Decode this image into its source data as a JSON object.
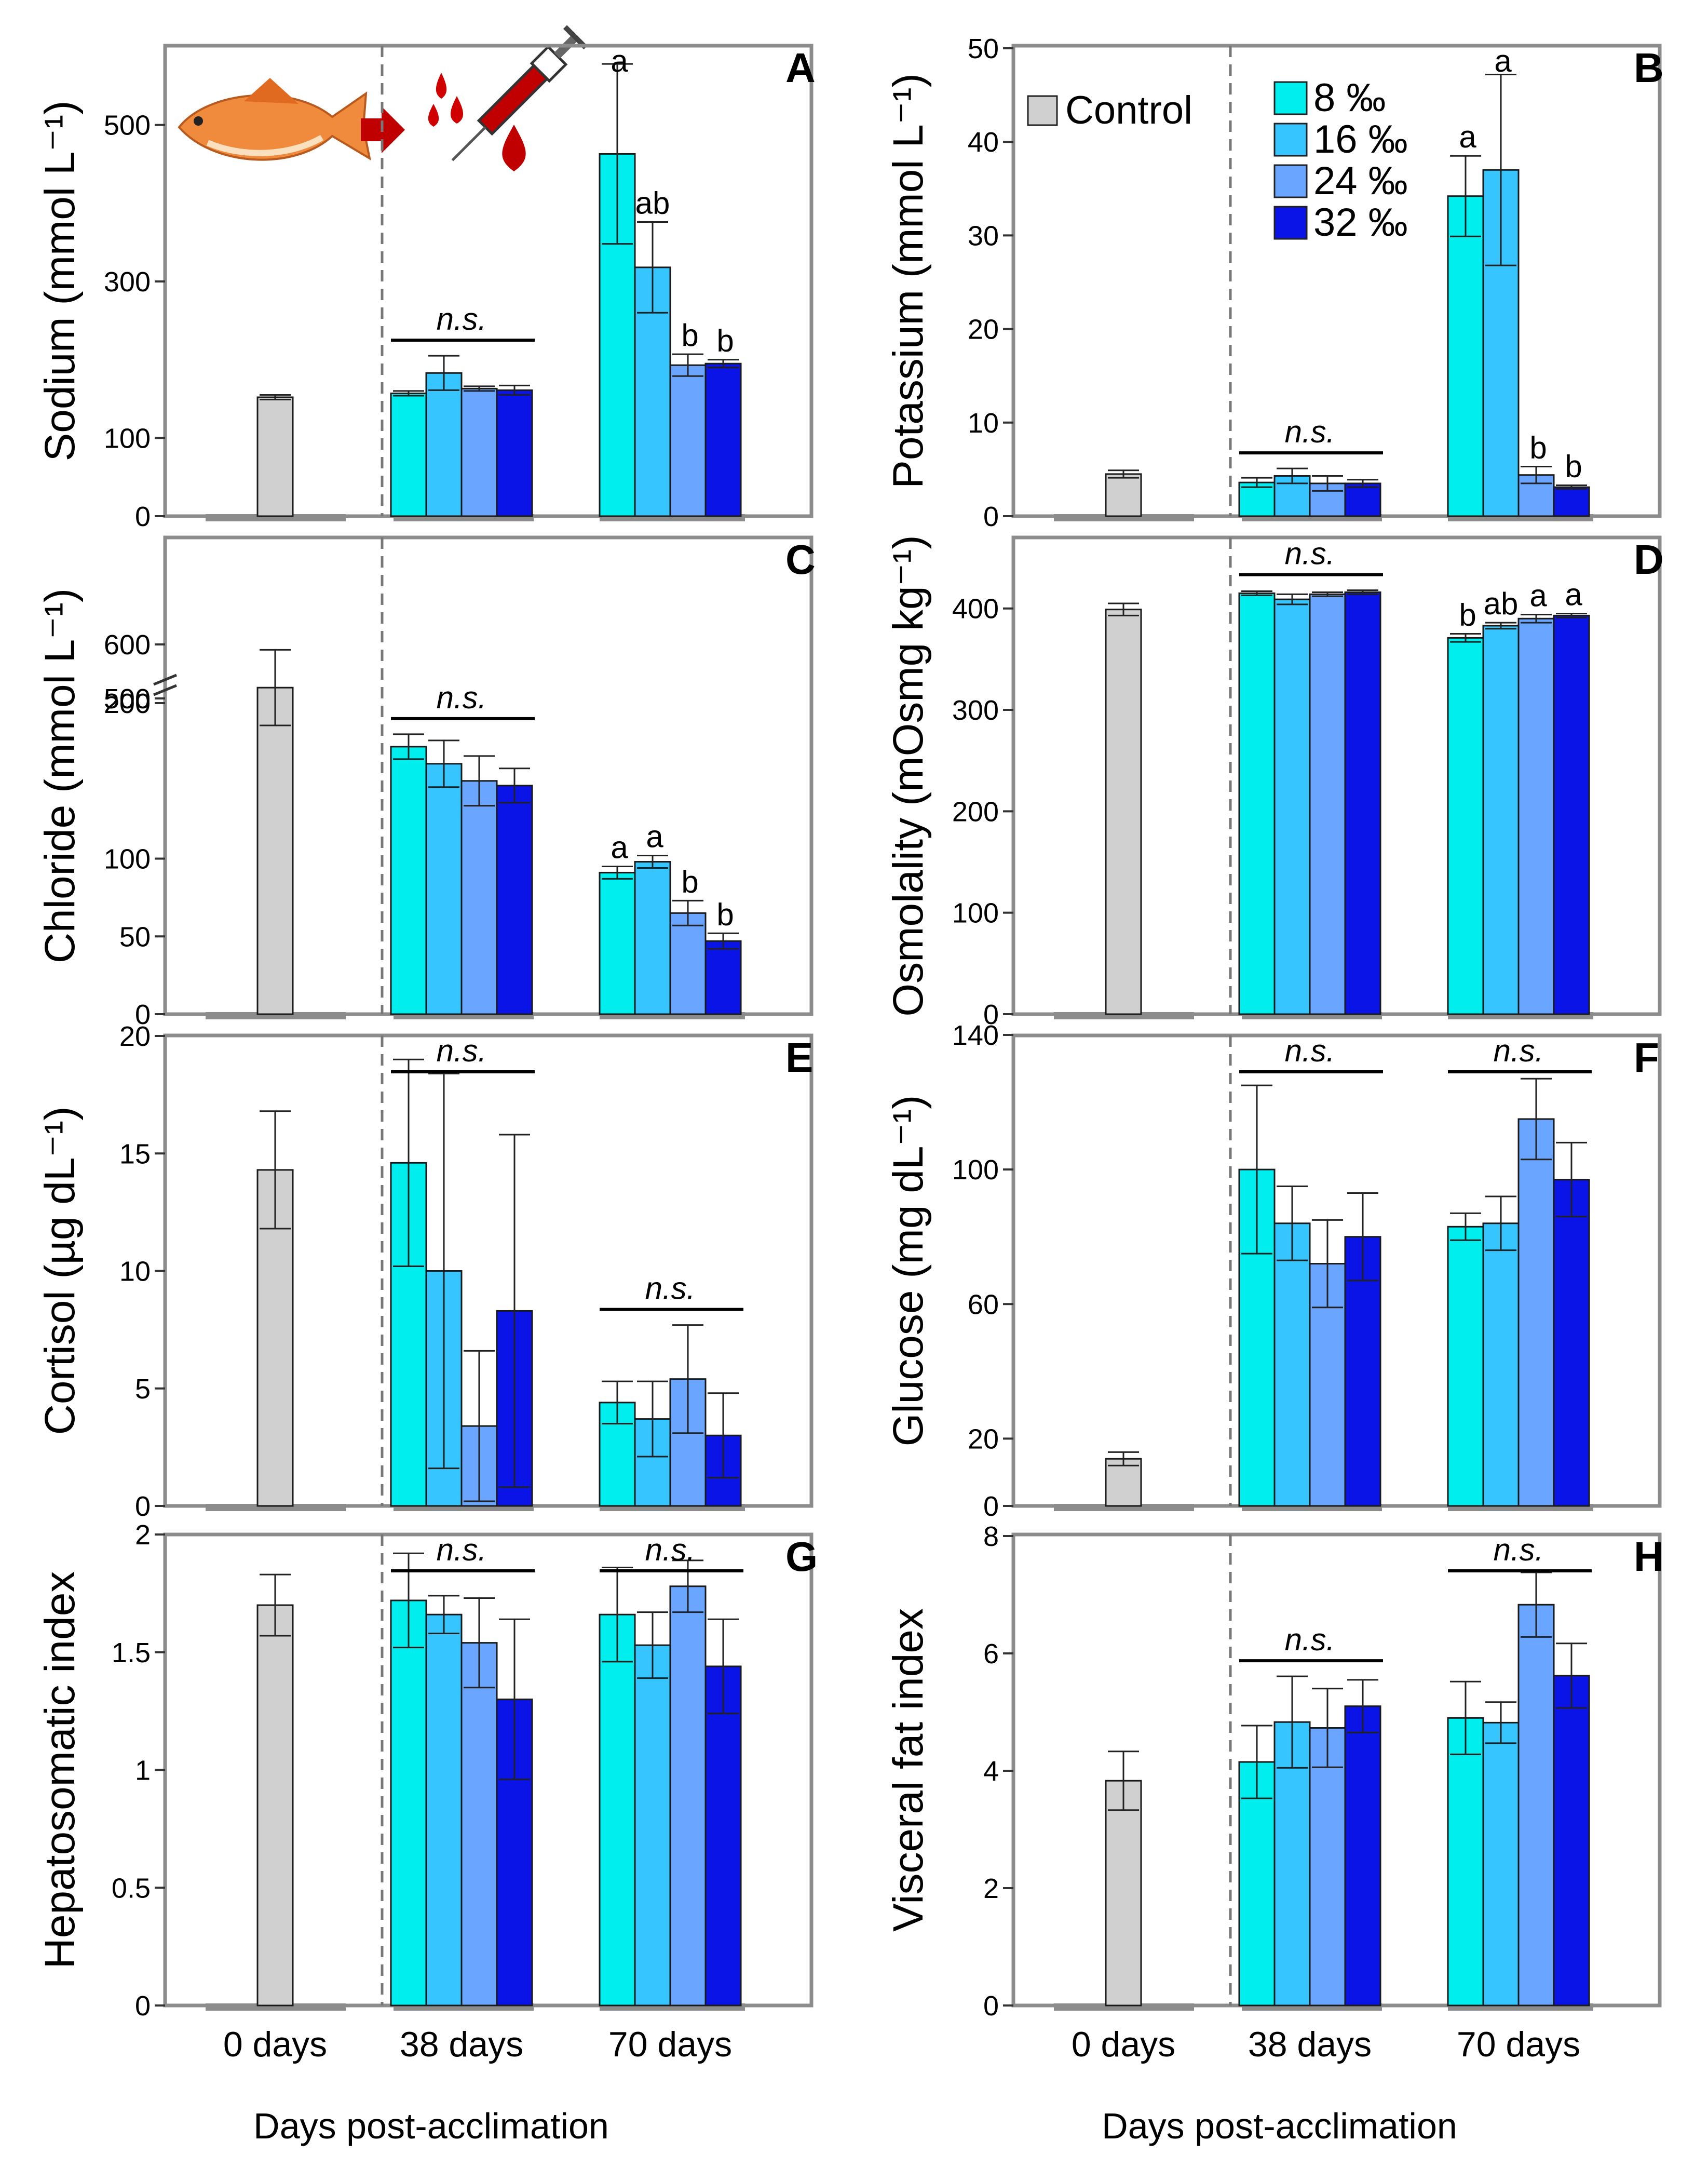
{
  "colors": {
    "control": "#d0d0d0",
    "s8": "#00eeee",
    "s16": "#36c5ff",
    "s24": "#6aa6ff",
    "s32": "#0a14e6",
    "frame": "#8c8c8c",
    "bar_edge": "#1a1a1a",
    "baseline": "#8c8c8c",
    "divider": "#777777",
    "fish": "#f08a3c",
    "blood": "#d00000"
  },
  "legend": {
    "control_label": "Control",
    "salinity_labels": [
      "8 ‰",
      "16 ‰",
      "24 ‰",
      "32 ‰"
    ]
  },
  "x_axis": {
    "groups": [
      "0 days",
      "38 days",
      "70 days"
    ],
    "xlabel": "Days post-acclimation"
  },
  "chart_data": [
    {
      "panel": "A",
      "type": "bar",
      "ylabel": "Sodium (mmol L⁻¹)",
      "ylim": [
        0,
        600
      ],
      "yticks": [
        0,
        100,
        300,
        500
      ],
      "categories": [
        "0 days",
        "38 days",
        "70 days"
      ],
      "control": {
        "value": 152,
        "err": 3
      },
      "series": [
        {
          "name": "8 ‰",
          "values": [
            null,
            157,
            463
          ],
          "errors": [
            null,
            3,
            115
          ]
        },
        {
          "name": "16 ‰",
          "values": [
            null,
            183,
            318
          ],
          "errors": [
            null,
            22,
            58
          ]
        },
        {
          "name": "24 ‰",
          "values": [
            null,
            163,
            193
          ],
          "errors": [
            null,
            3,
            14
          ]
        },
        {
          "name": "32 ‰",
          "values": [
            null,
            161,
            195
          ],
          "errors": [
            null,
            6,
            5
          ]
        }
      ],
      "annotations": [
        {
          "group": "38 days",
          "text": "n.s."
        },
        {
          "group": "70 days",
          "letters": [
            "a",
            "ab",
            "b",
            "b"
          ]
        }
      ]
    },
    {
      "panel": "B",
      "type": "bar",
      "ylabel": "Potassium (mmol L⁻¹)",
      "ylim": [
        0,
        50
      ],
      "yticks": [
        0,
        10,
        20,
        30,
        40,
        50
      ],
      "categories": [
        "0 days",
        "38 days",
        "70 days"
      ],
      "control": {
        "value": 4.5,
        "err": 0.4
      },
      "series": [
        {
          "name": "8 ‰",
          "values": [
            null,
            3.6,
            34.2
          ],
          "errors": [
            null,
            0.5,
            4.3
          ]
        },
        {
          "name": "16 ‰",
          "values": [
            null,
            4.3,
            37.0
          ],
          "errors": [
            null,
            0.8,
            10.2
          ]
        },
        {
          "name": "24 ‰",
          "values": [
            null,
            3.5,
            4.4
          ],
          "errors": [
            null,
            0.8,
            0.9
          ]
        },
        {
          "name": "32 ‰",
          "values": [
            null,
            3.5,
            3.1
          ],
          "errors": [
            null,
            0.4,
            0.2
          ]
        }
      ],
      "annotations": [
        {
          "group": "38 days",
          "text": "n.s."
        },
        {
          "group": "70 days",
          "letters": [
            "a",
            "a",
            "b",
            "b"
          ]
        }
      ]
    },
    {
      "panel": "C",
      "type": "bar",
      "ylabel": "Chloride (mmol L⁻¹)",
      "axis_break": "between 200 and 500",
      "yticks": [
        0,
        50,
        100,
        200,
        500,
        600
      ],
      "categories": [
        "0 days",
        "38 days",
        "70 days"
      ],
      "control": {
        "value": 520,
        "err": 70
      },
      "series": [
        {
          "name": "8 ‰",
          "values": [
            null,
            172,
            91
          ],
          "errors": [
            null,
            8,
            4
          ]
        },
        {
          "name": "16 ‰",
          "values": [
            null,
            161,
            98
          ],
          "errors": [
            null,
            15,
            4
          ]
        },
        {
          "name": "24 ‰",
          "values": [
            null,
            150,
            65
          ],
          "errors": [
            null,
            16,
            8
          ]
        },
        {
          "name": "32 ‰",
          "values": [
            null,
            147,
            47
          ],
          "errors": [
            null,
            11,
            5
          ]
        }
      ],
      "annotations": [
        {
          "group": "38 days",
          "text": "n.s."
        },
        {
          "group": "70 days",
          "letters": [
            "a",
            "a",
            "b",
            "b"
          ]
        }
      ]
    },
    {
      "panel": "D",
      "type": "bar",
      "ylabel": "Osmolality (mOsmg kg⁻¹)",
      "ylim": [
        0,
        470
      ],
      "yticks": [
        0,
        100,
        200,
        300,
        400
      ],
      "categories": [
        "0 days",
        "38 days",
        "70 days"
      ],
      "control": {
        "value": 399,
        "err": 6
      },
      "series": [
        {
          "name": "8 ‰",
          "values": [
            null,
            415,
            371
          ],
          "errors": [
            null,
            2,
            4
          ]
        },
        {
          "name": "16 ‰",
          "values": [
            null,
            409,
            383
          ],
          "errors": [
            null,
            5,
            3
          ]
        },
        {
          "name": "24 ‰",
          "values": [
            null,
            414,
            390
          ],
          "errors": [
            null,
            2,
            4
          ]
        },
        {
          "name": "32 ‰",
          "values": [
            null,
            416,
            393
          ],
          "errors": [
            null,
            2,
            2
          ]
        }
      ],
      "annotations": [
        {
          "group": "38 days",
          "text": "n.s."
        },
        {
          "group": "70 days",
          "letters": [
            "b",
            "ab",
            "a",
            "a"
          ]
        }
      ]
    },
    {
      "panel": "E",
      "type": "bar",
      "ylabel": "Cortisol (µg  dL⁻¹)",
      "ylim": [
        0,
        20
      ],
      "yticks": [
        0,
        5,
        10,
        15,
        20
      ],
      "categories": [
        "0 days",
        "38 days",
        "70 days"
      ],
      "control": {
        "value": 14.3,
        "err": 2.5
      },
      "series": [
        {
          "name": "8 ‰",
          "values": [
            null,
            14.6,
            4.4
          ],
          "errors": [
            null,
            4.4,
            0.9
          ]
        },
        {
          "name": "16 ‰",
          "values": [
            null,
            10.0,
            3.7
          ],
          "errors": [
            null,
            8.4,
            1.6
          ]
        },
        {
          "name": "24 ‰",
          "values": [
            null,
            3.4,
            5.4
          ],
          "errors": [
            null,
            3.2,
            2.3
          ]
        },
        {
          "name": "32 ‰",
          "values": [
            null,
            8.3,
            3.0
          ],
          "errors": [
            null,
            7.5,
            1.8
          ]
        }
      ],
      "annotations": [
        {
          "group": "38 days",
          "text": "n.s."
        },
        {
          "group": "70 days",
          "text": "n.s."
        }
      ]
    },
    {
      "panel": "F",
      "type": "bar",
      "ylabel": "Glucose (mg  dL⁻¹)",
      "ylim": [
        0,
        140
      ],
      "yticks": [
        0,
        20,
        60,
        100,
        140
      ],
      "categories": [
        "0 days",
        "38 days",
        "70 days"
      ],
      "control": {
        "value": 14,
        "err": 2
      },
      "series": [
        {
          "name": "8 ‰",
          "values": [
            null,
            100,
            83
          ],
          "errors": [
            null,
            25,
            4
          ]
        },
        {
          "name": "16 ‰",
          "values": [
            null,
            84,
            84
          ],
          "errors": [
            null,
            11,
            8
          ]
        },
        {
          "name": "24 ‰",
          "values": [
            null,
            72,
            115
          ],
          "errors": [
            null,
            13,
            12
          ]
        },
        {
          "name": "32 ‰",
          "values": [
            null,
            80,
            97
          ],
          "errors": [
            null,
            13,
            11
          ]
        }
      ],
      "annotations": [
        {
          "group": "38 days",
          "text": "n.s."
        },
        {
          "group": "70 days",
          "text": "n.s."
        }
      ]
    },
    {
      "panel": "G",
      "type": "bar",
      "ylabel": "Hepatosomatic index",
      "ylim": [
        0,
        2
      ],
      "yticks": [
        0.0,
        0.5,
        1.0,
        1.5,
        2.0
      ],
      "categories": [
        "0 days",
        "38 days",
        "70 days"
      ],
      "control": {
        "value": 1.7,
        "err": 0.13
      },
      "series": [
        {
          "name": "8 ‰",
          "values": [
            null,
            1.72,
            1.66
          ],
          "errors": [
            null,
            0.2,
            0.2
          ]
        },
        {
          "name": "16 ‰",
          "values": [
            null,
            1.66,
            1.53
          ],
          "errors": [
            null,
            0.08,
            0.14
          ]
        },
        {
          "name": "24 ‰",
          "values": [
            null,
            1.54,
            1.78
          ],
          "errors": [
            null,
            0.19,
            0.11
          ]
        },
        {
          "name": "32 ‰",
          "values": [
            null,
            1.3,
            1.44
          ],
          "errors": [
            null,
            0.34,
            0.2
          ]
        }
      ],
      "annotations": [
        {
          "group": "38 days",
          "text": "n.s."
        },
        {
          "group": "70 days",
          "text": "n.s."
        }
      ]
    },
    {
      "panel": "H",
      "type": "bar",
      "ylabel": "Visceral fat index",
      "ylim": [
        0,
        8
      ],
      "yticks": [
        0,
        2,
        4,
        6,
        8
      ],
      "categories": [
        "0 days",
        "38 days",
        "70 days"
      ],
      "control": {
        "value": 3.83,
        "err": 0.5
      },
      "series": [
        {
          "name": "8 ‰",
          "values": [
            null,
            4.15,
            4.9
          ],
          "errors": [
            null,
            0.62,
            0.62
          ]
        },
        {
          "name": "16 ‰",
          "values": [
            null,
            4.83,
            4.82
          ],
          "errors": [
            null,
            0.78,
            0.35
          ]
        },
        {
          "name": "24 ‰",
          "values": [
            null,
            4.73,
            6.83
          ],
          "errors": [
            null,
            0.67,
            0.55
          ]
        },
        {
          "name": "32 ‰",
          "values": [
            null,
            5.1,
            5.62
          ],
          "errors": [
            null,
            0.45,
            0.55
          ]
        }
      ],
      "annotations": [
        {
          "group": "38 days",
          "text": "n.s."
        },
        {
          "group": "70 days",
          "text": "n.s."
        }
      ]
    }
  ]
}
